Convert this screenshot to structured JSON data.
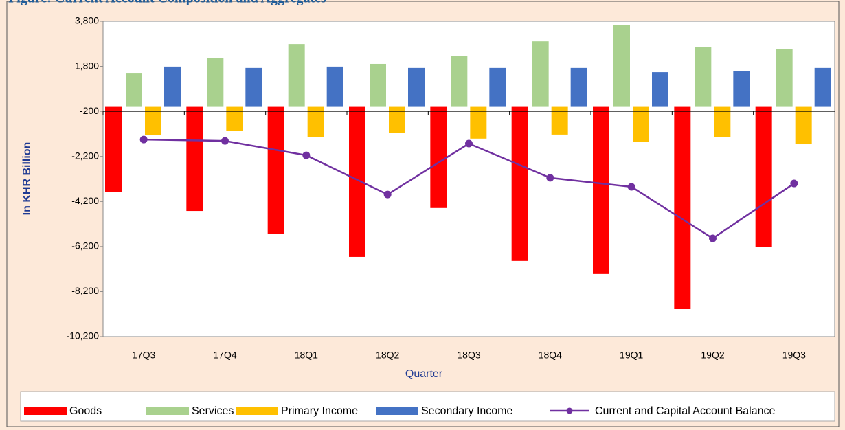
{
  "chart_data": {
    "type": "bar",
    "title": "Figure: Current Account Composition and Aggregates",
    "ylabel": "In KHR Billion",
    "xlabel": "Quarter",
    "categories": [
      "17Q3",
      "17Q4",
      "18Q1",
      "18Q2",
      "18Q3",
      "18Q4",
      "19Q1",
      "19Q2",
      "19Q3"
    ],
    "series": [
      {
        "name": "Goods",
        "color": "#ff0000",
        "kind": "bar",
        "values": [
          -3790,
          -4620,
          -5650,
          -6660,
          -4490,
          -6840,
          -7420,
          -8980,
          -6230
        ]
      },
      {
        "name": "Services",
        "color": "#a9d18e",
        "kind": "bar",
        "values": [
          1480,
          2180,
          2790,
          1910,
          2270,
          2910,
          3620,
          2670,
          2550
        ]
      },
      {
        "name": "Primary Income",
        "color": "#ffc000",
        "kind": "bar",
        "values": [
          -1260,
          -1050,
          -1350,
          -1170,
          -1410,
          -1230,
          -1540,
          -1350,
          -1660
        ]
      },
      {
        "name": "Secondary Income",
        "color": "#4472c4",
        "kind": "bar",
        "values": [
          1790,
          1730,
          1790,
          1730,
          1730,
          1730,
          1540,
          1600,
          1730
        ]
      },
      {
        "name": "Current and Capital Account Balance",
        "color": "#7030a0",
        "kind": "line",
        "values": [
          -1450,
          -1510,
          -2150,
          -3890,
          -1630,
          -3150,
          -3550,
          -5840,
          -3400
        ]
      }
    ],
    "ylim": [
      -10200,
      3800
    ],
    "yticks": [
      {
        "value": 3800,
        "label": "3,800"
      },
      {
        "value": 1800,
        "label": "1,800"
      },
      -200,
      {
        "value": -2200,
        "label": "-2,200"
      },
      {
        "value": -4200,
        "label": "-4,200"
      },
      {
        "value": -6200,
        "label": "-6,200"
      },
      {
        "value": -8200,
        "label": "-8,200"
      },
      {
        "value": -10200,
        "label": "-10,200"
      }
    ],
    "x_axis_crosses": -200,
    "grid": false,
    "legend": "bottom"
  }
}
